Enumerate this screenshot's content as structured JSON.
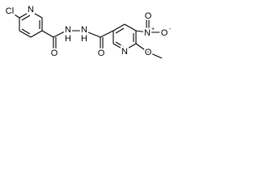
{
  "atoms": [
    {
      "label": "Cl"
    },
    {
      "label": "N"
    },
    {
      "label": "O"
    },
    {
      "label": "N",
      "h": "H"
    },
    {
      "label": "N",
      "h": "H"
    },
    {
      "label": "O"
    },
    {
      "label": "N"
    },
    {
      "label": "N",
      "charge": "+"
    },
    {
      "label": "O",
      "charge": "-"
    },
    {
      "label": "O"
    },
    {
      "label": "O"
    }
  ]
}
